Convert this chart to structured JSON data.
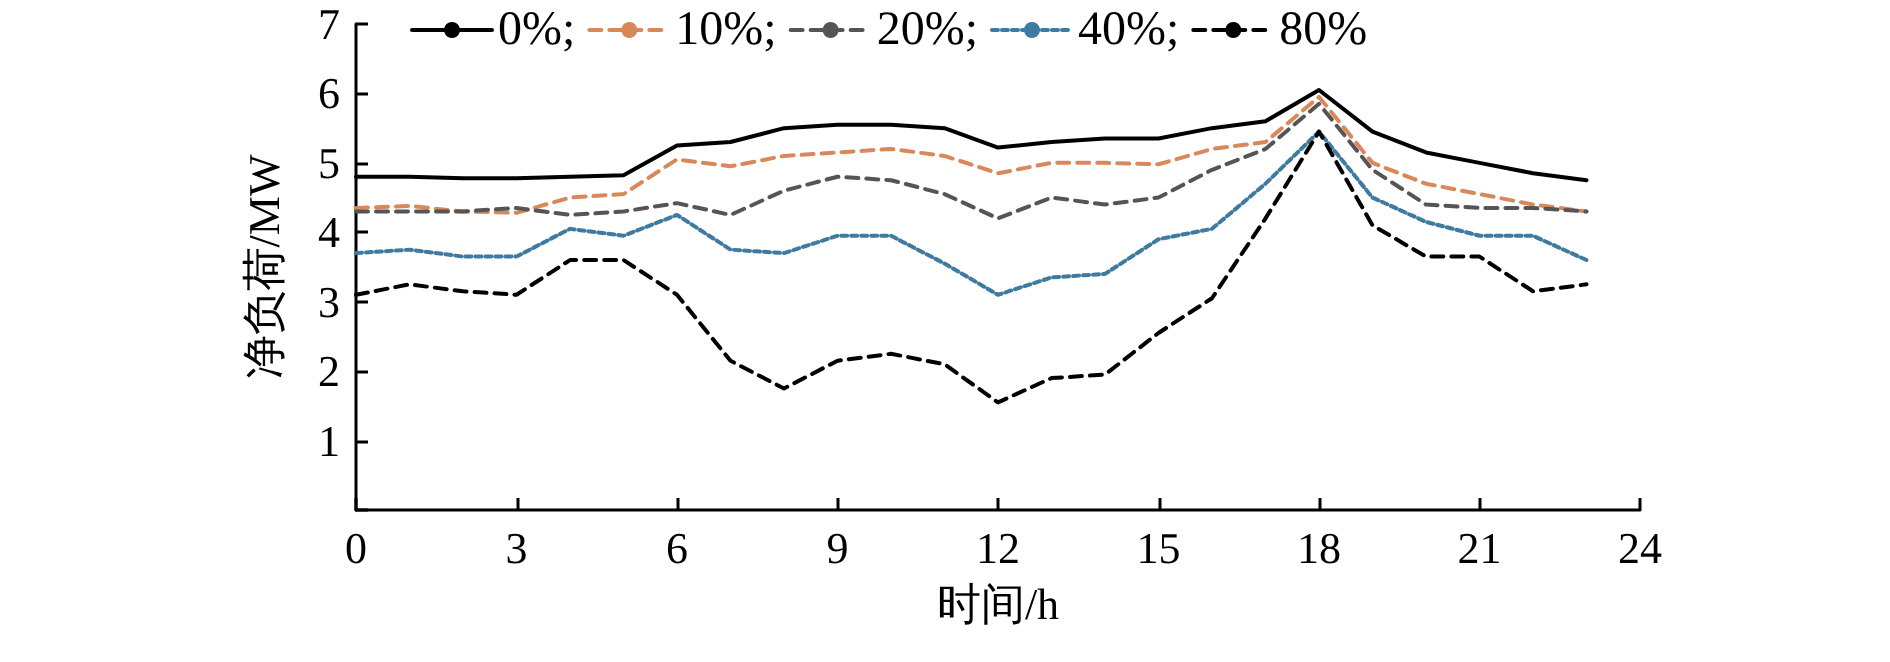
{
  "chart_data": {
    "type": "line",
    "xlabel": "时间/h",
    "ylabel": "净负荷/MW",
    "x": [
      0,
      1,
      2,
      3,
      4,
      5,
      6,
      7,
      8,
      9,
      10,
      11,
      12,
      13,
      14,
      15,
      16,
      17,
      18,
      19,
      20,
      21,
      22,
      23
    ],
    "series": [
      {
        "name": "0%;",
        "color": "#000000",
        "line_style": "solid",
        "values": [
          4.8,
          4.8,
          4.78,
          4.78,
          4.8,
          4.82,
          5.25,
          5.3,
          5.5,
          5.55,
          5.55,
          5.5,
          5.22,
          5.3,
          5.35,
          5.35,
          5.5,
          5.6,
          6.05,
          5.45,
          5.15,
          5.0,
          4.85,
          4.75
        ]
      },
      {
        "name": "10%;",
        "color": "#d9885a",
        "line_style": "dashed",
        "values": [
          4.35,
          4.38,
          4.3,
          4.28,
          4.5,
          4.55,
          5.05,
          4.95,
          5.1,
          5.15,
          5.2,
          5.1,
          4.85,
          5.0,
          5.0,
          4.98,
          5.2,
          5.3,
          5.95,
          5.0,
          4.7,
          4.55,
          4.4,
          4.3
        ]
      },
      {
        "name": "20%;",
        "color": "#555555",
        "line_style": "dashed",
        "values": [
          4.3,
          4.3,
          4.3,
          4.35,
          4.25,
          4.3,
          4.42,
          4.25,
          4.6,
          4.8,
          4.75,
          4.55,
          4.2,
          4.5,
          4.4,
          4.5,
          4.9,
          5.2,
          5.85,
          4.9,
          4.4,
          4.35,
          4.35,
          4.3
        ]
      },
      {
        "name": "40%;",
        "color": "#3f7aa0",
        "line_style": "dotted",
        "values": [
          3.7,
          3.75,
          3.65,
          3.65,
          4.05,
          3.95,
          4.25,
          3.75,
          3.7,
          3.95,
          3.95,
          3.55,
          3.1,
          3.35,
          3.4,
          3.9,
          4.05,
          4.7,
          5.45,
          4.5,
          4.15,
          3.95,
          3.95,
          3.6
        ]
      },
      {
        "name": "80%",
        "color": "#000000",
        "line_style": "dashed",
        "values": [
          3.1,
          3.25,
          3.15,
          3.1,
          3.6,
          3.6,
          3.1,
          2.15,
          1.75,
          2.15,
          2.25,
          2.1,
          1.55,
          1.9,
          1.95,
          2.55,
          3.05,
          4.2,
          5.45,
          4.1,
          3.65,
          3.65,
          3.15,
          3.25
        ]
      }
    ],
    "xlim": [
      0,
      24
    ],
    "xticks": [
      0,
      3,
      6,
      9,
      12,
      15,
      18,
      21,
      24
    ],
    "ylim": [
      0,
      7
    ],
    "yticks": [
      {
        "value": 0,
        "label": null
      },
      1,
      2,
      3,
      4,
      5,
      6,
      7
    ],
    "grid": false,
    "legend": "top",
    "marker": "none"
  }
}
